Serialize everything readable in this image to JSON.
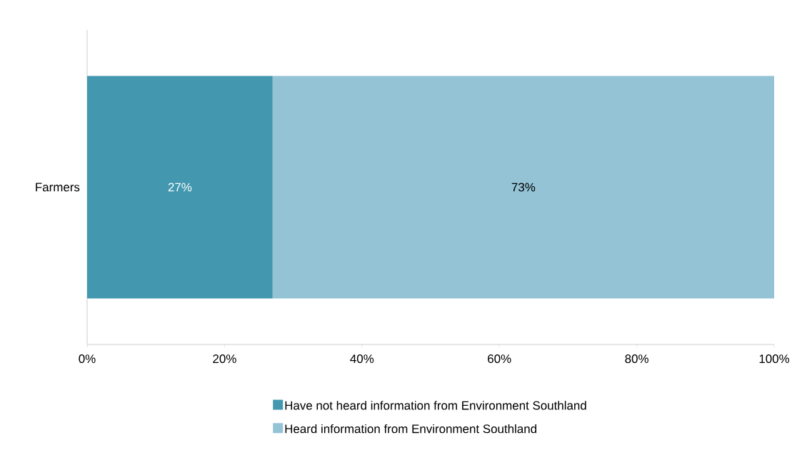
{
  "chart_data": {
    "type": "bar",
    "orientation": "horizontal",
    "stacked": true,
    "categories": [
      "Farmers"
    ],
    "series": [
      {
        "name": "Have not heard information from Environment Southland",
        "color": "#4398af",
        "values": [
          27
        ],
        "value_labels": [
          "27%"
        ]
      },
      {
        "name": "Heard information from Environment Southland",
        "color": "#93c3d5",
        "values": [
          73
        ],
        "value_labels": [
          "73%"
        ]
      }
    ],
    "xlim": [
      0,
      100
    ],
    "xticks": [
      {
        "value": 0,
        "label": "0%"
      },
      {
        "value": 20,
        "label": "20%"
      },
      {
        "value": 40,
        "label": "40%"
      },
      {
        "value": 60,
        "label": "60%"
      },
      {
        "value": 80,
        "label": "80%"
      },
      {
        "value": 100,
        "label": "100%"
      }
    ],
    "legend": "bottom",
    "grid": false
  }
}
